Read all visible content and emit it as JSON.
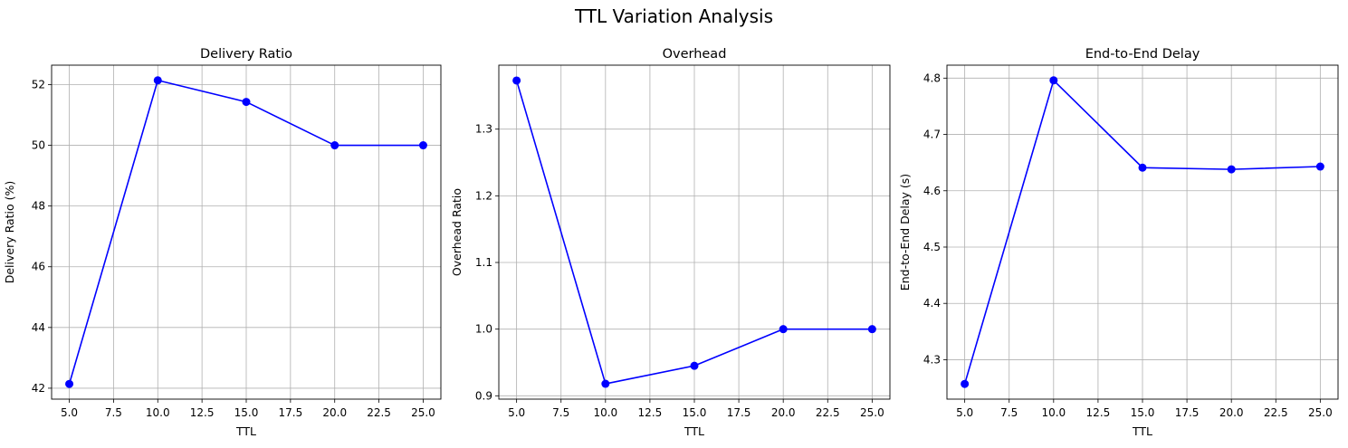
{
  "figure": {
    "title": "TTL Variation Analysis"
  },
  "style": {
    "line_color": "#0000ff",
    "grid_color": "#b0b0b0",
    "axis_color": "#000000"
  },
  "chart_data": [
    {
      "type": "line",
      "title": "Delivery Ratio",
      "xlabel": "TTL",
      "ylabel": "Delivery Ratio (%)",
      "x": [
        5,
        10,
        15,
        20,
        25
      ],
      "series": [
        {
          "values": [
            42.14,
            52.14,
            51.43,
            50.0,
            50.0
          ],
          "color": "#0000ff",
          "marker": "circle"
        }
      ],
      "xlim": [
        4,
        26
      ],
      "ylim": [
        41.64,
        52.64
      ],
      "xticks": [
        5,
        7.5,
        10,
        12.5,
        15,
        17.5,
        20,
        22.5,
        25
      ],
      "xtick_labels": [
        "5.0",
        "7.5",
        "10.0",
        "12.5",
        "15.0",
        "17.5",
        "20.0",
        "22.5",
        "25.0"
      ],
      "yticks": [
        42,
        44,
        46,
        48,
        50,
        52
      ],
      "ytick_labels": [
        "42",
        "44",
        "46",
        "48",
        "50",
        "52"
      ],
      "grid": true
    },
    {
      "type": "line",
      "title": "Overhead",
      "xlabel": "TTL",
      "ylabel": "Overhead Ratio",
      "x": [
        5,
        10,
        15,
        20,
        25
      ],
      "series": [
        {
          "values": [
            1.373,
            0.918,
            0.945,
            1.0,
            1.0
          ],
          "color": "#0000ff",
          "marker": "circle"
        }
      ],
      "xlim": [
        4,
        26
      ],
      "ylim": [
        0.895,
        1.396
      ],
      "xticks": [
        5,
        7.5,
        10,
        12.5,
        15,
        17.5,
        20,
        22.5,
        25
      ],
      "xtick_labels": [
        "5.0",
        "7.5",
        "10.0",
        "12.5",
        "15.0",
        "17.5",
        "20.0",
        "22.5",
        "25.0"
      ],
      "yticks": [
        0.9,
        1.0,
        1.1,
        1.2,
        1.3
      ],
      "ytick_labels": [
        "0.9",
        "1.0",
        "1.1",
        "1.2",
        "1.3"
      ],
      "grid": true
    },
    {
      "type": "line",
      "title": "End-to-End Delay",
      "xlabel": "TTL",
      "ylabel": "End-to-End Delay (s)",
      "x": [
        5,
        10,
        15,
        20,
        25
      ],
      "series": [
        {
          "values": [
            4.257,
            4.796,
            4.641,
            4.638,
            4.643
          ],
          "color": "#0000ff",
          "marker": "circle"
        }
      ],
      "xlim": [
        4,
        26
      ],
      "ylim": [
        4.23,
        4.823
      ],
      "xticks": [
        5,
        7.5,
        10,
        12.5,
        15,
        17.5,
        20,
        22.5,
        25
      ],
      "xtick_labels": [
        "5.0",
        "7.5",
        "10.0",
        "12.5",
        "15.0",
        "17.5",
        "20.0",
        "22.5",
        "25.0"
      ],
      "yticks": [
        4.3,
        4.4,
        4.5,
        4.6,
        4.7,
        4.8
      ],
      "ytick_labels": [
        "4.3",
        "4.4",
        "4.5",
        "4.6",
        "4.7",
        "4.8"
      ],
      "grid": true
    }
  ]
}
